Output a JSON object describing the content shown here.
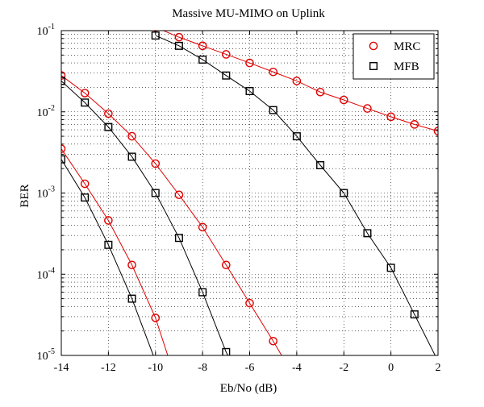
{
  "chart_data": {
    "type": "line",
    "title": "Massive MU-MIMO on Uplink",
    "xlabel": "Eb/No (dB)",
    "ylabel": "BER",
    "xlim": [
      -14,
      2
    ],
    "ylim": [
      1e-05,
      0.1
    ],
    "yscale": "log",
    "grid": true,
    "grid_style": "dotted",
    "legend_position": "top-right",
    "x_ticks": [
      -14,
      -12,
      -10,
      -8,
      -6,
      -4,
      -2,
      0,
      2
    ],
    "x_tick_labels": [
      "-14",
      "-12",
      "-10",
      "-8",
      "-6",
      "-4",
      "-2",
      "0",
      "2"
    ],
    "y_ticks": [
      1e-05,
      0.0001,
      0.001,
      0.01,
      0.1
    ],
    "y_tick_exponents": [
      "-5",
      "-4",
      "-3",
      "-2",
      "-1"
    ],
    "y_tick_base": "10",
    "legend": [
      {
        "label": "MRC",
        "marker": "circle",
        "color": "#e00000"
      },
      {
        "label": "MFB",
        "marker": "square",
        "color": "#000000"
      }
    ],
    "series": [
      {
        "group": "MRC",
        "color": "#e00000",
        "marker": "circle",
        "x": [
          -10,
          -9,
          -8,
          -7,
          -6,
          -5,
          -4,
          -3,
          -2,
          -1,
          0,
          1,
          2
        ],
        "y": [
          0.11,
          0.083,
          0.065,
          0.051,
          0.04,
          0.031,
          0.024,
          0.0175,
          0.014,
          0.011,
          0.0087,
          0.007,
          0.0058
        ]
      },
      {
        "group": "MFB",
        "color": "#000000",
        "marker": "square",
        "x": [
          -10,
          -9,
          -8,
          -7,
          -6,
          -5,
          -4,
          -3,
          -2,
          -1,
          0,
          1,
          2
        ],
        "y": [
          0.087,
          0.065,
          0.044,
          0.028,
          0.018,
          0.0105,
          0.005,
          0.0022,
          0.001,
          0.00032,
          0.00012,
          3.2e-05,
          8.5e-06
        ]
      },
      {
        "group": "MRC",
        "color": "#e00000",
        "marker": "circle",
        "x": [
          -14,
          -13,
          -12,
          -11,
          -10,
          -9,
          -8,
          -7,
          -6,
          -5,
          -4.5
        ],
        "y": [
          0.028,
          0.017,
          0.0095,
          0.005,
          0.0023,
          0.00095,
          0.00038,
          0.00013,
          4.4e-05,
          1.5e-05,
          8.5e-06
        ]
      },
      {
        "group": "MFB",
        "color": "#000000",
        "marker": "square",
        "x": [
          -14,
          -13,
          -12,
          -11,
          -10,
          -9,
          -8,
          -7,
          -6.8
        ],
        "y": [
          0.024,
          0.013,
          0.0065,
          0.0028,
          0.001,
          0.00028,
          6e-05,
          1.1e-05,
          8.5e-06
        ]
      },
      {
        "group": "MRC",
        "color": "#e00000",
        "marker": "circle",
        "x": [
          -14,
          -13,
          -12,
          -11,
          -10,
          -9.4
        ],
        "y": [
          0.0035,
          0.0013,
          0.00046,
          0.00013,
          2.9e-05,
          8.5e-06
        ]
      },
      {
        "group": "MFB",
        "color": "#000000",
        "marker": "square",
        "x": [
          -14,
          -13,
          -12,
          -11,
          -10,
          -9.9
        ],
        "y": [
          0.0026,
          0.00088,
          0.00023,
          5e-05,
          8.5e-06,
          8.5e-06
        ]
      }
    ]
  }
}
